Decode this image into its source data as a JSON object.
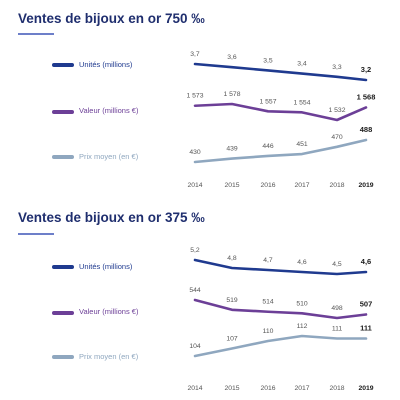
{
  "chart_data": [
    {
      "type": "line",
      "title": "Ventes de bijoux en or 750 ‰",
      "categories": [
        "2014",
        "2015",
        "2016",
        "2017",
        "2018",
        "2019"
      ],
      "highlight_last": true,
      "series": [
        {
          "name": "Unités (millions)",
          "values": [
            3.7,
            3.6,
            3.5,
            3.4,
            3.3,
            3.2
          ],
          "labels": [
            "3,7",
            "3,6",
            "3,5",
            "3,4",
            "3,3",
            "3,2"
          ],
          "color": "#1f3a8f"
        },
        {
          "name": "Valeur (millions €)",
          "values": [
            1573,
            1578,
            1557,
            1554,
            1532,
            1568
          ],
          "labels": [
            "1 573",
            "1 578",
            "1 557",
            "1 554",
            "1 532",
            "1 568"
          ],
          "color": "#6c3f97"
        },
        {
          "name": "Prix moyen (en €)",
          "values": [
            430,
            439,
            446,
            451,
            470,
            488
          ],
          "labels": [
            "430",
            "439",
            "446",
            "451",
            "470",
            "488"
          ],
          "color": "#8fa7bf"
        }
      ]
    },
    {
      "type": "line",
      "title": "Ventes de bijoux en or 375 ‰",
      "categories": [
        "2014",
        "2015",
        "2016",
        "2017",
        "2018",
        "2019"
      ],
      "highlight_last": true,
      "series": [
        {
          "name": "Unités (millions)",
          "values": [
            5.2,
            4.8,
            4.7,
            4.6,
            4.5,
            4.6
          ],
          "labels": [
            "5,2",
            "4,8",
            "4,7",
            "4,6",
            "4,5",
            "4,6"
          ],
          "color": "#1f3a8f"
        },
        {
          "name": "Valeur (millions €)",
          "values": [
            544,
            519,
            514,
            510,
            498,
            507
          ],
          "labels": [
            "544",
            "519",
            "514",
            "510",
            "498",
            "507"
          ],
          "color": "#6c3f97"
        },
        {
          "name": "Prix moyen (en €)",
          "values": [
            104,
            107,
            110,
            112,
            111,
            111
          ],
          "labels": [
            "104",
            "107",
            "110",
            "112",
            "111",
            "111"
          ],
          "color": "#8fa7bf"
        }
      ]
    }
  ]
}
